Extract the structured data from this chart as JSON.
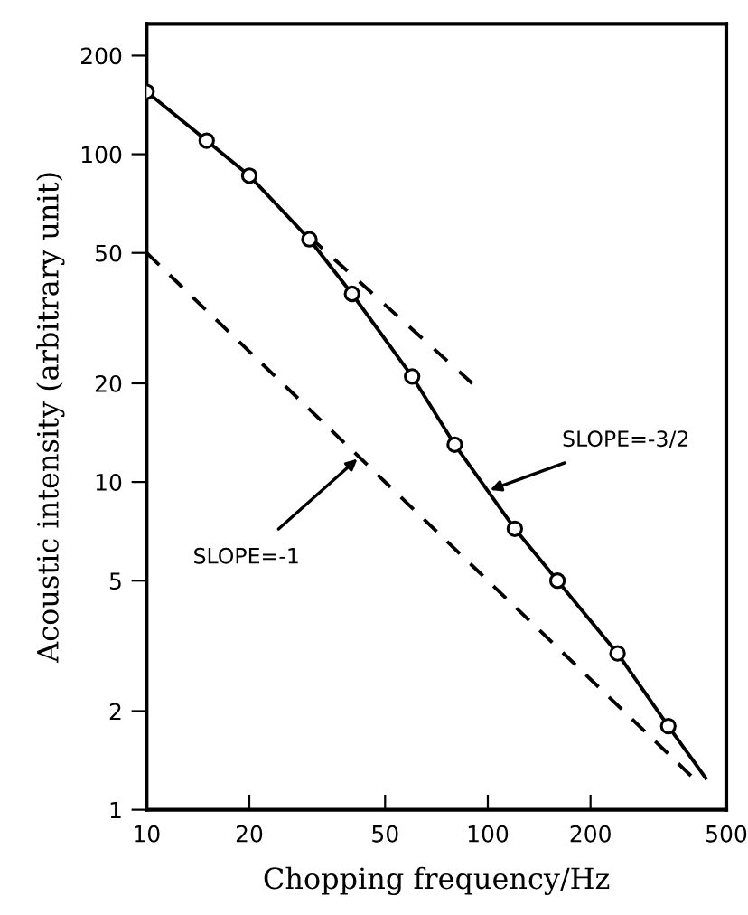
{
  "chart_data": {
    "type": "line",
    "xlabel": "Chopping frequency/Hz",
    "ylabel": "Acoustic intensity (arbitrary unit)",
    "log": "xy",
    "xlim": [
      10,
      500
    ],
    "ylim": [
      1,
      250
    ],
    "xticks": [
      10,
      20,
      50,
      100,
      200,
      500
    ],
    "yticks": [
      1,
      2,
      5,
      10,
      20,
      50,
      100,
      200
    ],
    "grid": false,
    "legend": false,
    "series": [
      {
        "color": "#000000",
        "line_style": "solid",
        "marker": "none",
        "x": [
          10,
          15,
          20,
          30,
          40,
          60,
          80,
          120,
          160,
          240,
          338,
          435
        ],
        "values": [
          155,
          110,
          86,
          55,
          37.5,
          21,
          13,
          7.2,
          5.0,
          3.0,
          1.8,
          1.25
        ]
      },
      {
        "type": "scatter",
        "color": "#000000",
        "marker": "circle",
        "x": [
          10,
          15,
          20,
          30,
          40,
          60,
          80,
          120,
          160,
          240,
          338
        ],
        "values": [
          155,
          110,
          86,
          55,
          37.5,
          21,
          13,
          7.2,
          5.0,
          3.0,
          1.8
        ]
      },
      {
        "color": "#000000",
        "line_style": "dashed",
        "marker": "none",
        "x": [
          30,
          90
        ],
        "values": [
          56,
          20
        ]
      },
      {
        "color": "#000000",
        "line_style": "dashed",
        "marker": "none",
        "x": [
          10,
          394
        ],
        "values": [
          50,
          1.27
        ]
      }
    ],
    "annotations": [
      {
        "text": "SLOPE=-1",
        "x": 42,
        "y": 11.9
      },
      {
        "text": "SLOPE=-3/2",
        "x": 100,
        "y": 9.4
      }
    ]
  }
}
